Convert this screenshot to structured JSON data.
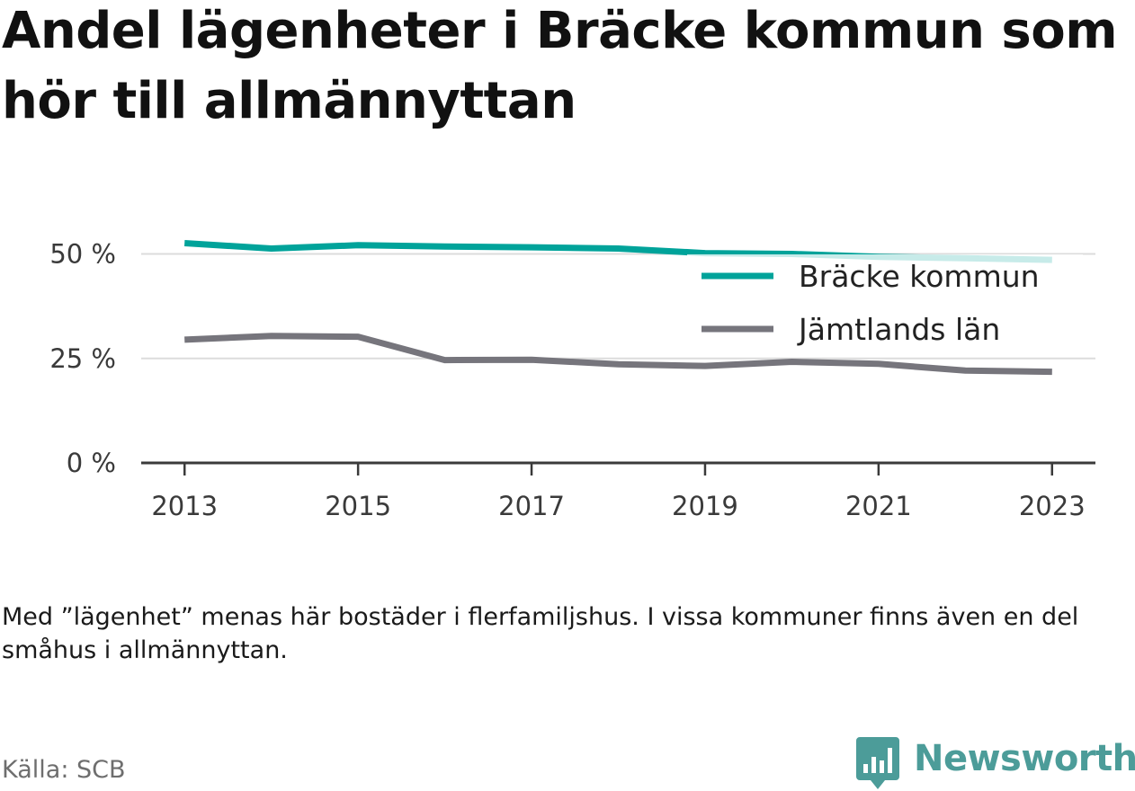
{
  "title": "Andel lägenheter i Bräcke kommun som hör till allmännyttan",
  "note": "Med ”lägenhet” menas här bostäder i flerfamiljshus. I vissa kommuner finns även en del småhus i allmännyttan.",
  "source": "Källa: SCB",
  "brand": {
    "name": "Newsworthy",
    "color": "#4c9c99",
    "icon": "bar-chart-speech-bubble-icon"
  },
  "chart_data": {
    "type": "line",
    "x": [
      2013,
      2014,
      2015,
      2016,
      2017,
      2018,
      2019,
      2020,
      2021,
      2022,
      2023
    ],
    "xticks": [
      2013,
      2015,
      2017,
      2019,
      2021,
      2023
    ],
    "xtick_labels": [
      "2013",
      "2015",
      "2017",
      "2019",
      "2021",
      "2023"
    ],
    "xlim": [
      2012.5,
      2023.5
    ],
    "ylim": [
      0,
      57
    ],
    "yticks": [
      0,
      25,
      50
    ],
    "ytick_labels": [
      "0 %",
      "25 %",
      "50 %"
    ],
    "grid": "horizontal",
    "legend_position": "top-right",
    "series": [
      {
        "name": "Bräcke kommun",
        "color": "#00a39a",
        "values": [
          52.6,
          51.3,
          52.1,
          51.8,
          51.6,
          51.3,
          50.2,
          50.0,
          49.3,
          49.0,
          48.6
        ]
      },
      {
        "name": "Jämtlands län",
        "color": "#76757c",
        "values": [
          29.5,
          30.4,
          30.2,
          24.6,
          24.7,
          23.6,
          23.2,
          24.2,
          23.7,
          22.1,
          21.8
        ]
      }
    ]
  }
}
